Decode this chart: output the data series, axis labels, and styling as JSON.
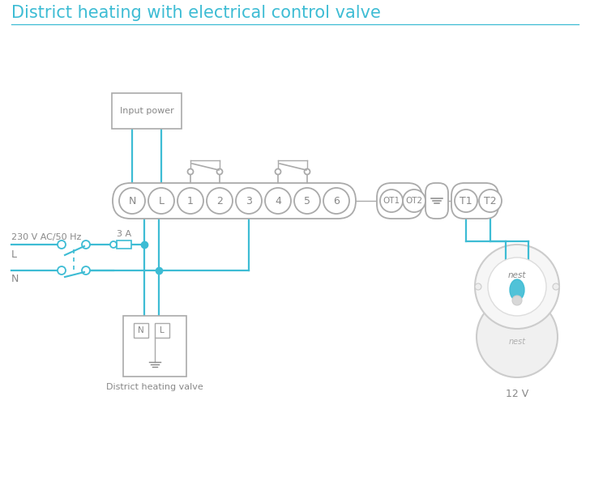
{
  "title": "District heating with electrical control valve",
  "title_color": "#3dbcd4",
  "title_fontsize": 15,
  "bg_color": "#ffffff",
  "wire_color": "#3dbcd4",
  "gray_color": "#aaaaaa",
  "text_color": "#888888",
  "label_230v": "230 V AC/50 Hz",
  "label_3a": "3 A",
  "label_l": "L",
  "label_n": "N",
  "label_valve": "District heating valve",
  "label_12v": "12 V",
  "label_input": "Input power",
  "label_nest": "nest",
  "terminals_main": [
    "N",
    "L",
    "1",
    "2",
    "3",
    "4",
    "5",
    "6"
  ],
  "figsize": [
    7.28,
    5.94
  ],
  "dpi": 100
}
